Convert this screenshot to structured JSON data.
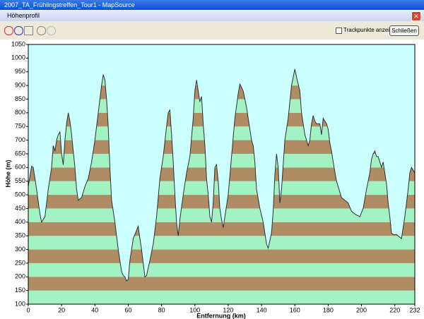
{
  "window": {
    "title": "2007_TA_Frühlingstreffen_Tour1 - MapSource",
    "dialog_title": "Höhenprofil"
  },
  "toolbar": {
    "checkbox_label": "Trackpunkte anzeigen",
    "button_label": "Schließen"
  },
  "chart_data": {
    "type": "area",
    "x_label": "Entfernung (km)",
    "y_label": "Höhe (m)",
    "x": [
      0,
      2,
      3,
      5,
      7,
      8,
      10,
      12,
      14,
      15,
      16,
      17,
      18,
      19,
      20,
      21,
      22,
      23,
      24,
      25,
      26,
      28,
      29,
      30,
      32,
      34,
      36,
      38,
      40,
      42,
      44,
      45,
      46,
      47,
      48,
      49,
      50,
      52,
      54,
      55,
      56,
      57,
      58,
      59,
      60,
      61,
      63,
      65,
      66,
      67,
      68,
      69,
      70,
      71,
      73,
      75,
      77,
      79,
      81,
      83,
      84,
      85,
      86,
      87,
      88,
      89,
      90,
      91,
      93,
      95,
      97,
      99,
      100,
      101,
      102,
      103,
      104,
      105,
      106,
      107,
      108,
      109,
      110,
      111,
      112,
      113,
      114,
      115,
      116,
      117,
      118,
      120,
      122,
      124,
      126,
      127,
      129,
      131,
      133,
      134,
      135,
      136,
      137,
      139,
      141,
      143,
      144,
      146,
      147,
      148,
      149,
      150,
      151,
      152,
      154,
      156,
      158,
      160,
      161,
      163,
      164,
      165,
      166,
      167,
      168,
      169,
      170,
      171,
      172,
      173,
      175,
      176,
      177,
      178,
      179,
      180,
      181,
      182,
      183,
      185,
      187,
      188,
      190,
      192,
      194,
      196,
      199,
      201,
      203,
      205,
      206,
      207,
      208,
      209,
      210,
      212,
      213,
      214,
      215,
      216,
      217,
      218,
      219,
      221,
      223,
      224,
      225,
      226,
      228,
      229,
      230,
      232
    ],
    "series": [
      {
        "name": "Höhe",
        "values": [
          530,
          605,
          600,
          520,
          430,
          400,
          420,
          520,
          600,
          680,
          660,
          700,
          720,
          730,
          650,
          610,
          700,
          760,
          800,
          770,
          720,
          600,
          520,
          480,
          490,
          530,
          560,
          620,
          700,
          800,
          900,
          940,
          920,
          850,
          750,
          600,
          480,
          400,
          300,
          260,
          220,
          205,
          200,
          185,
          190,
          260,
          340,
          370,
          385,
          340,
          300,
          250,
          200,
          205,
          260,
          320,
          420,
          560,
          640,
          750,
          800,
          810,
          720,
          620,
          500,
          400,
          350,
          410,
          500,
          580,
          640,
          780,
          880,
          920,
          880,
          840,
          860,
          760,
          680,
          560,
          500,
          420,
          400,
          470,
          600,
          610,
          550,
          450,
          410,
          380,
          420,
          500,
          640,
          780,
          870,
          905,
          880,
          820,
          740,
          700,
          680,
          620,
          520,
          450,
          400,
          320,
          305,
          360,
          440,
          570,
          650,
          600,
          470,
          520,
          700,
          780,
          900,
          960,
          930,
          880,
          800,
          760,
          720,
          700,
          680,
          700,
          760,
          790,
          770,
          760,
          760,
          720,
          780,
          770,
          760,
          740,
          690,
          660,
          620,
          550,
          510,
          490,
          480,
          470,
          440,
          430,
          420,
          450,
          520,
          580,
          630,
          650,
          660,
          640,
          640,
          600,
          620,
          580,
          540,
          470,
          420,
          360,
          355,
          355,
          345,
          340,
          380,
          420,
          520,
          580,
          600,
          580
        ]
      }
    ],
    "xlim": [
      0,
      232
    ],
    "ylim": [
      100,
      1050
    ],
    "xticks": [
      0,
      20,
      40,
      60,
      80,
      100,
      120,
      140,
      160,
      180,
      200,
      220,
      232
    ],
    "yticks": [
      100,
      150,
      200,
      250,
      300,
      350,
      400,
      450,
      500,
      550,
      600,
      650,
      700,
      750,
      800,
      850,
      900,
      950,
      1000,
      1050
    ],
    "sky_color": "#ccffff",
    "band_colors": [
      "#a3f2c4",
      "#b08c64"
    ],
    "line_color": "#303030"
  }
}
